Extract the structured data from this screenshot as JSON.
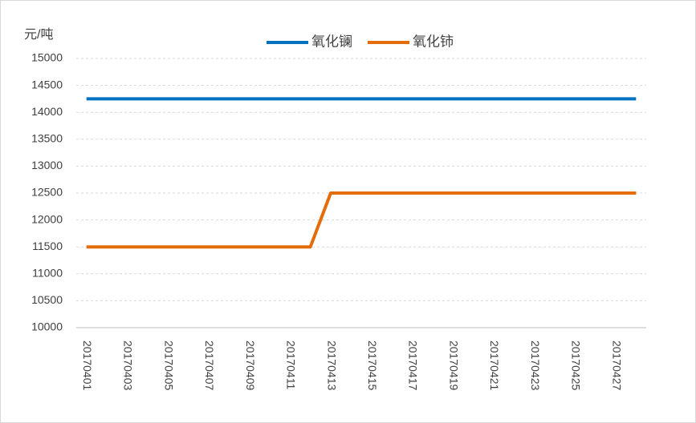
{
  "chart_data": {
    "type": "line",
    "y_label": "元/吨",
    "categories": [
      "20170401",
      null,
      "20170403",
      null,
      "20170405",
      null,
      "20170407",
      null,
      "20170409",
      null,
      "20170411",
      null,
      "20170413",
      null,
      "20170415",
      null,
      "20170417",
      null,
      "20170419",
      null,
      "20170421",
      null,
      "20170423",
      null,
      "20170425",
      null,
      "20170427",
      null
    ],
    "series": [
      {
        "name": "氧化镧",
        "color": "#0070c0",
        "values": [
          14250,
          14250,
          14250,
          14250,
          14250,
          14250,
          14250,
          14250,
          14250,
          14250,
          14250,
          14250,
          14250,
          14250,
          14250,
          14250,
          14250,
          14250,
          14250,
          14250,
          14250,
          14250,
          14250,
          14250,
          14250,
          14250,
          14250,
          14250
        ]
      },
      {
        "name": "氧化铈",
        "color": "#e46c0a",
        "values": [
          11500,
          11500,
          11500,
          11500,
          11500,
          11500,
          11500,
          11500,
          11500,
          11500,
          11500,
          11500,
          12500,
          12500,
          12500,
          12500,
          12500,
          12500,
          12500,
          12500,
          12500,
          12500,
          12500,
          12500,
          12500,
          12500,
          12500,
          12500
        ]
      }
    ],
    "ylim": [
      10000,
      15000
    ],
    "yticks": [
      10000,
      10500,
      11000,
      11500,
      12000,
      12500,
      13000,
      13500,
      14000,
      14500,
      15000
    ],
    "grid": true,
    "legend": "top"
  }
}
